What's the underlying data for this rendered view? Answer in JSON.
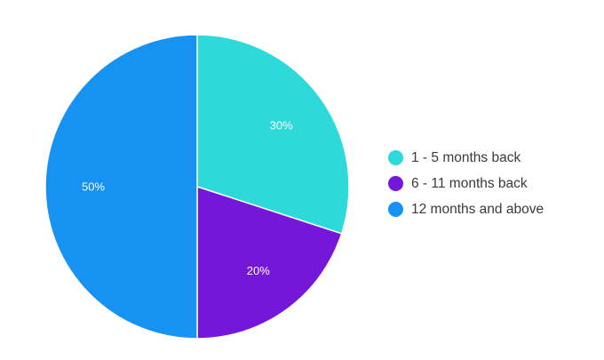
{
  "chart_data": {
    "type": "pie",
    "categories": [
      "1 - 5 months back",
      "6 - 11 months back",
      "12 months and above"
    ],
    "values": [
      30,
      20,
      50
    ],
    "value_labels": [
      "30%",
      "20%",
      "50%"
    ],
    "colors": [
      "#2ED9D9",
      "#7516DB",
      "#1592F2"
    ],
    "start_angle": "12 o'clock",
    "direction": "clockwise",
    "legend_position": "right",
    "title": ""
  }
}
